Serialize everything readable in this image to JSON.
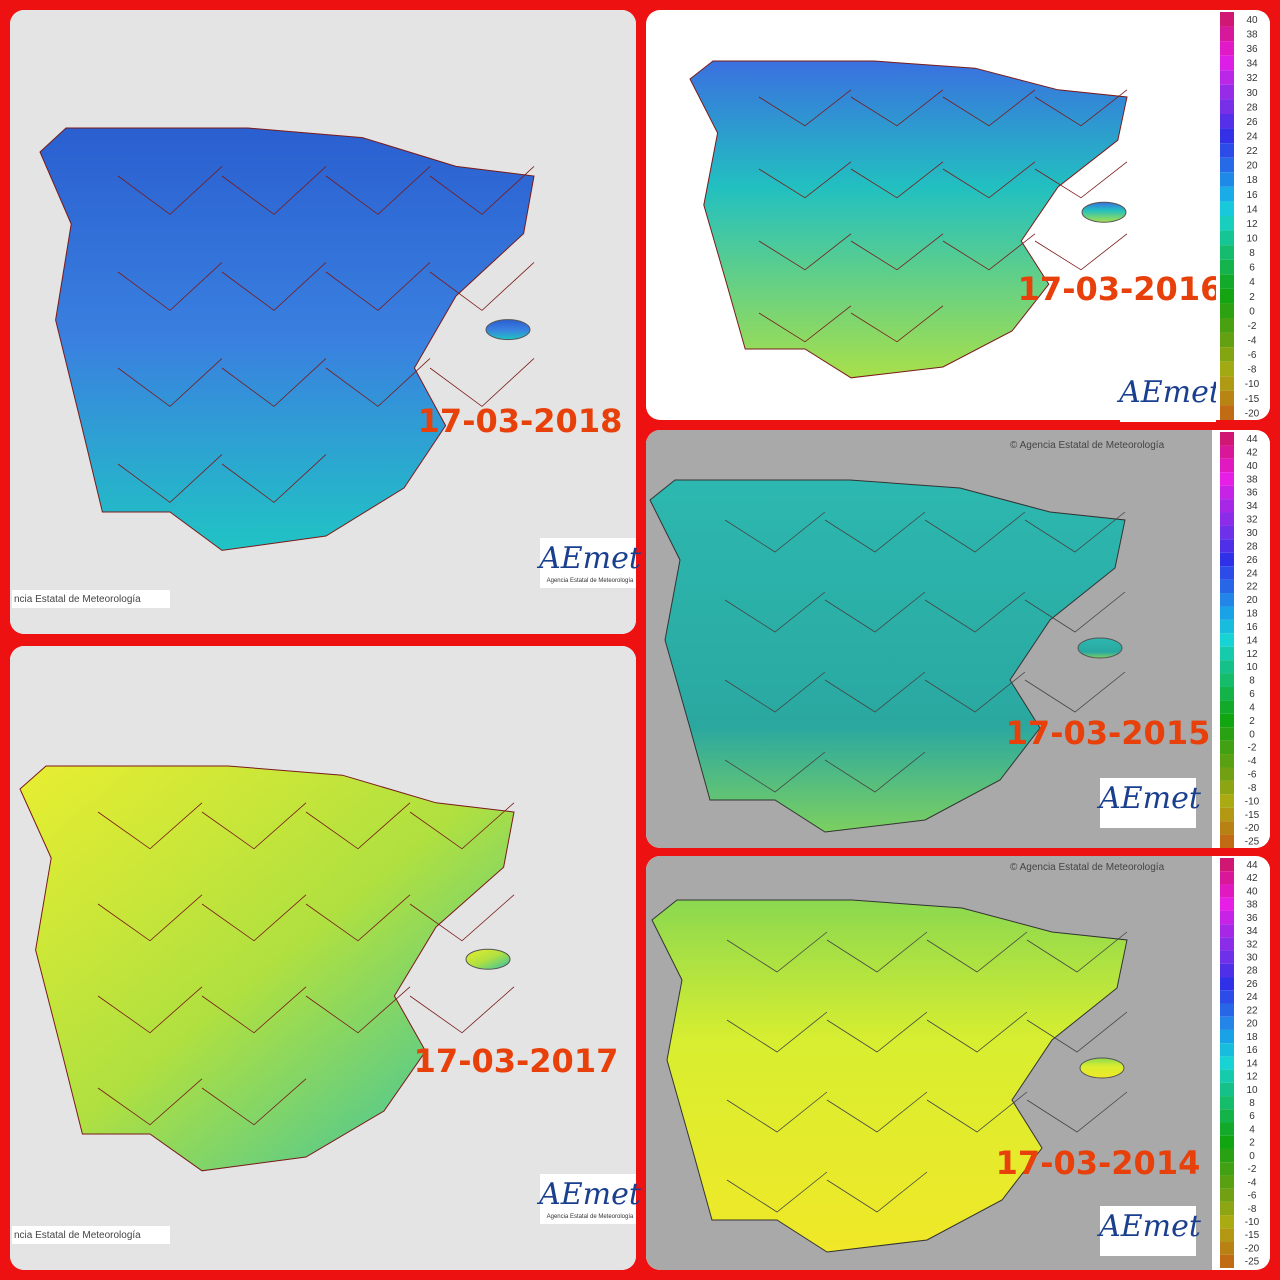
{
  "panels": [
    {
      "date": "17-03-2018",
      "credit": "ncia Estatal de Meteorología",
      "logo": "AEmet",
      "logo_subtitle": "Agencia Estatal de Meteorología"
    },
    {
      "date": "17-03-2016",
      "logo": "AEmet",
      "legend": [
        "40",
        "38",
        "36",
        "34",
        "32",
        "30",
        "28",
        "26",
        "24",
        "22",
        "20",
        "18",
        "16",
        "14",
        "12",
        "10",
        "8",
        "6",
        "4",
        "2",
        "0",
        "-2",
        "-4",
        "-6",
        "-8",
        "-10",
        "-15",
        "-20"
      ]
    },
    {
      "date": "17-03-2015",
      "credit": "© Agencia Estatal de Meteorología",
      "logo": "AEmet",
      "legend": [
        "44",
        "42",
        "40",
        "38",
        "36",
        "34",
        "32",
        "30",
        "28",
        "26",
        "24",
        "22",
        "20",
        "18",
        "16",
        "14",
        "12",
        "10",
        "8",
        "6",
        "4",
        "2",
        "0",
        "-2",
        "-4",
        "-6",
        "-8",
        "-10",
        "-15",
        "-20",
        "-25"
      ]
    },
    {
      "date": "17-03-2017",
      "credit": "ncia Estatal de Meteorología",
      "logo": "AEmet",
      "logo_subtitle": "Agencia Estatal de Meteorología"
    },
    {
      "date": "17-03-2014",
      "credit": "© Agencia Estatal de Meteorología",
      "logo": "AEmet",
      "legend": [
        "44",
        "42",
        "40",
        "38",
        "36",
        "34",
        "32",
        "30",
        "28",
        "26",
        "24",
        "22",
        "20",
        "18",
        "16",
        "14",
        "12",
        "10",
        "8",
        "6",
        "4",
        "2",
        "0",
        "-2",
        "-4",
        "-6",
        "-8",
        "-10",
        "-15",
        "-20",
        "-25"
      ]
    }
  ]
}
